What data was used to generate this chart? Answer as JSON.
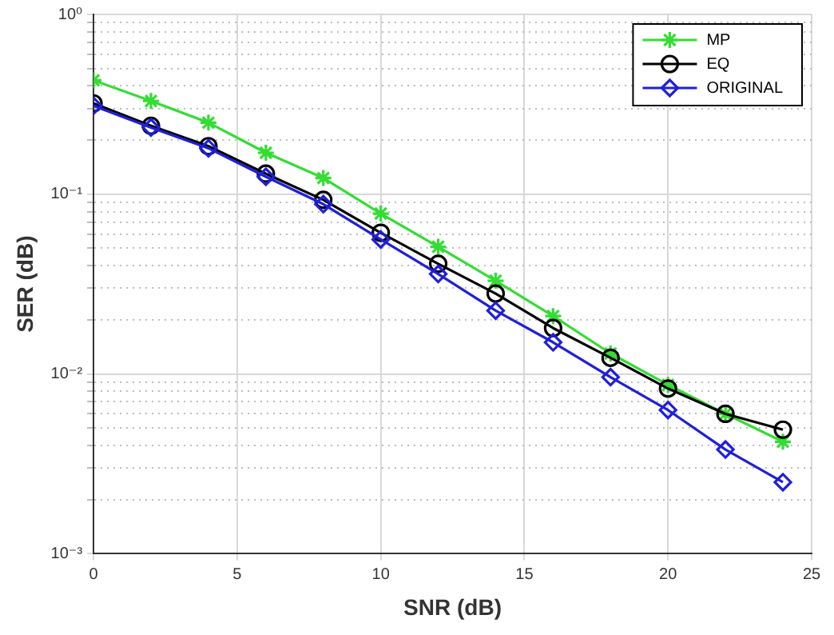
{
  "chart_data": {
    "type": "line",
    "xlabel": "SNR (dB)",
    "ylabel": "SER (dB)",
    "x": [
      0,
      2,
      4,
      6,
      8,
      10,
      12,
      14,
      16,
      18,
      20,
      22,
      24
    ],
    "series": [
      {
        "name": "MP",
        "color": "#33dd33",
        "marker": "cross",
        "values": [
          0.43,
          0.33,
          0.25,
          0.17,
          0.123,
          0.078,
          0.051,
          0.033,
          0.021,
          0.013,
          0.0087,
          0.006,
          0.0042
        ]
      },
      {
        "name": "EQ",
        "color": "#000000",
        "marker": "circle",
        "values": [
          0.32,
          0.24,
          0.185,
          0.13,
          0.093,
          0.061,
          0.041,
          0.028,
          0.018,
          0.0123,
          0.0083,
          0.006,
          0.0049
        ]
      },
      {
        "name": "ORIGINAL",
        "color": "#1f1fdd",
        "marker": "diamond",
        "values": [
          0.31,
          0.235,
          0.18,
          0.125,
          0.088,
          0.056,
          0.036,
          0.0225,
          0.015,
          0.0096,
          0.0063,
          0.0038,
          0.0025
        ]
      }
    ],
    "log": "y",
    "xlim": [
      0,
      25
    ],
    "xticks": [
      0,
      5,
      10,
      15,
      20,
      25
    ],
    "ylim": [
      0.001,
      1
    ],
    "yticks": [
      {
        "value": 0.001,
        "label": "10⁻³"
      },
      {
        "value": 0.002,
        "label": null
      },
      {
        "value": 0.003,
        "label": null
      },
      {
        "value": 0.004,
        "label": null
      },
      {
        "value": 0.005,
        "label": null
      },
      {
        "value": 0.006,
        "label": null
      },
      {
        "value": 0.007,
        "label": null
      },
      {
        "value": 0.008,
        "label": null
      },
      {
        "value": 0.009,
        "label": null
      },
      {
        "value": 0.01,
        "label": "10⁻²"
      },
      {
        "value": 0.02,
        "label": null
      },
      {
        "value": 0.03,
        "label": null
      },
      {
        "value": 0.04,
        "label": null
      },
      {
        "value": 0.05,
        "label": null
      },
      {
        "value": 0.06,
        "label": null
      },
      {
        "value": 0.07,
        "label": null
      },
      {
        "value": 0.08,
        "label": null
      },
      {
        "value": 0.09,
        "label": null
      },
      {
        "value": 0.1,
        "label": "10⁻¹"
      },
      {
        "value": 0.2,
        "label": null
      },
      {
        "value": 0.3,
        "label": null
      },
      {
        "value": 0.4,
        "label": null
      },
      {
        "value": 0.5,
        "label": null
      },
      {
        "value": 0.6,
        "label": null
      },
      {
        "value": 0.7,
        "label": null
      },
      {
        "value": 0.8,
        "label": null
      },
      {
        "value": 0.9,
        "label": null
      },
      {
        "value": 1,
        "label": "10⁰"
      }
    ],
    "grid": true,
    "legend": "top right",
    "line_style": "solid"
  }
}
